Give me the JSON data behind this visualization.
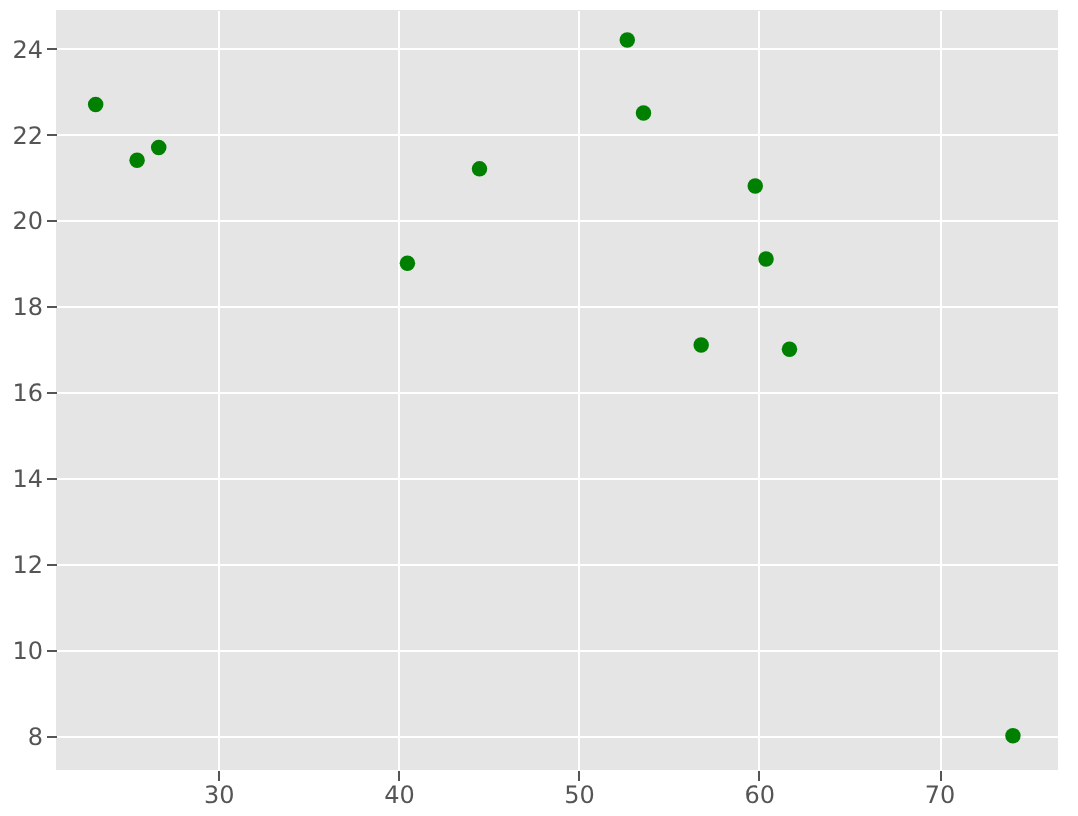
{
  "chart_data": {
    "type": "scatter",
    "x": [
      23.2,
      25.5,
      26.7,
      40.5,
      44.5,
      52.7,
      53.6,
      56.8,
      59.8,
      60.4,
      61.7,
      74.1
    ],
    "values": [
      22.7,
      21.4,
      21.7,
      19.0,
      21.2,
      24.2,
      22.5,
      17.1,
      20.8,
      19.1,
      17.0,
      8.0
    ],
    "color": "#008000",
    "marker": "circle",
    "grid": true,
    "xlim": [
      21,
      76.6
    ],
    "xticks": [
      30,
      40,
      50,
      60,
      70
    ],
    "ylim": [
      7.2,
      24.9
    ],
    "yticks": [
      8,
      10,
      12,
      14,
      16,
      18,
      20,
      22,
      24
    ]
  }
}
